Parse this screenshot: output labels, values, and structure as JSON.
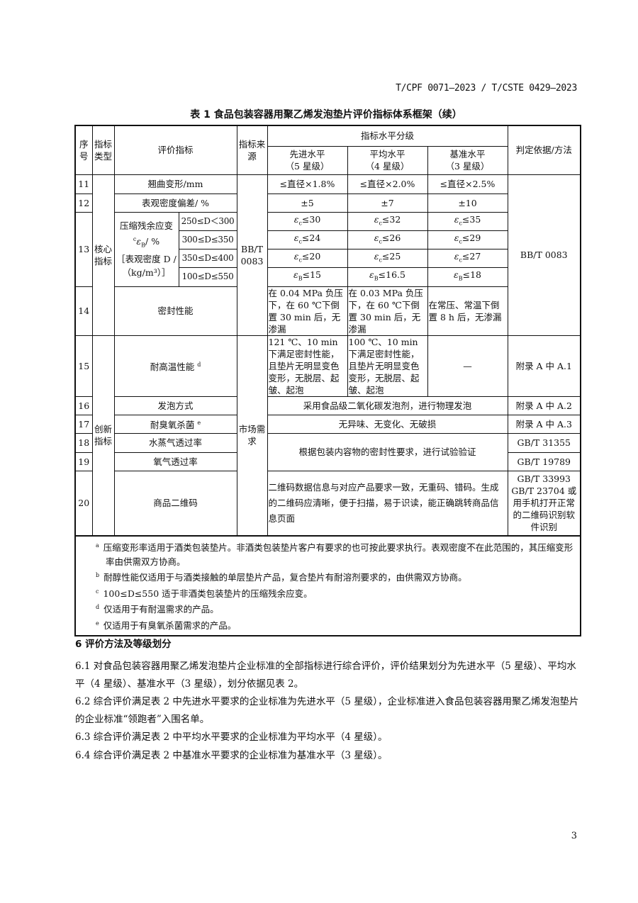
{
  "header": "T/CPF 0071—2023 / T/CSTE 0429—2023",
  "table_title": "表 1   食品包装容器用聚乙烯发泡垫片评价指标体系框架（续）",
  "columns": {
    "no": "序号",
    "type": "指标类型",
    "indicator": "评价指标",
    "source": "指标来源",
    "levels": "指标水平分级",
    "advanced": "先进水平",
    "advanced_star": "（5 星级）",
    "average": "平均水平",
    "average_star": "（4 星级）",
    "baseline": "基准水平",
    "baseline_star": "（3 星级）",
    "method": "判定依据/方法"
  },
  "groups": {
    "core": "核心指标",
    "innovation": "创新指标"
  },
  "sources": {
    "core": "BB/T 0083",
    "market": "市场需求"
  },
  "rows": {
    "r11": {
      "no": "11",
      "name": "翘曲变形/mm",
      "v": [
        "≤直径×1.8%",
        "≤直径×2.0%",
        "≤直径×2.5%"
      ]
    },
    "r12": {
      "no": "12",
      "name": "表观密度偏差/ %",
      "v": [
        "±5",
        "±7",
        "±10"
      ]
    },
    "r13": {
      "no": "13",
      "name1": "压缩残余应变",
      "sup": "c",
      "name2": "ε",
      "name2sub": "B",
      "name3": "/ %",
      "name4": "［表观密度 D /",
      "name5": "（kg/m³）］",
      "ranges": [
        "250≤D＜300",
        "300≤D≤350",
        "350≤D≤400",
        "100≤D≤550"
      ],
      "v": [
        [
          {
            "s": "c",
            "t": "≤30"
          },
          {
            "s": "c",
            "t": "≤32"
          },
          {
            "s": "c",
            "t": "≤35"
          }
        ],
        [
          {
            "s": "c",
            "t": "≤24"
          },
          {
            "s": "c",
            "t": "≤26"
          },
          {
            "s": "c",
            "t": "≤29"
          }
        ],
        [
          {
            "s": "c",
            "t": "≤20"
          },
          {
            "s": "c",
            "t": "≤25"
          },
          {
            "s": "c",
            "t": "≤27"
          }
        ],
        [
          {
            "s": "B",
            "t": "≤15"
          },
          {
            "s": "B",
            "t": "≤16.5"
          },
          {
            "s": "B",
            "t": "≤18"
          }
        ]
      ]
    },
    "r14": {
      "no": "14",
      "name": "密封性能",
      "v": [
        "在 0.04 MPa 负压下，在 60 ℃下倒置 30 min 后，无渗漏",
        "在 0.03 MPa 负压下，在 60 ℃下倒置 30 min 后，无渗漏",
        "在常压、常温下倒置 8 h 后，无渗漏"
      ]
    },
    "core_method": "BB/T 0083",
    "r15": {
      "no": "15",
      "name": "耐高温性能",
      "sup": "d",
      "v": [
        "121 ℃、10 min 下满足密封性能，且垫片无明显变色变形，无脱层、起皱、起泡",
        "100 ℃、10 min 下满足密封性能，且垫片无明显变色变形，无脱层、起皱、起泡",
        "—"
      ],
      "method": "附录 A 中 A.1"
    },
    "r16": {
      "no": "16",
      "name": "发泡方式",
      "v": "采用食品级二氧化碳发泡剂，进行物理发泡",
      "method": "附录 A 中 A.2"
    },
    "r17": {
      "no": "17",
      "name": "耐臭氧杀菌",
      "sup": "e",
      "v": "无异味、无变化、无破损",
      "method": "附录 A 中 A.3"
    },
    "r18": {
      "no": "18",
      "name": "水蒸气透过率",
      "method": "GB/T 31355"
    },
    "r19": {
      "no": "19",
      "name": "氧气透过率",
      "method": "GB/T 19789"
    },
    "r1819_v": "根据包装内容物的密封性要求，进行试验验证",
    "r20": {
      "no": "20",
      "name": "商品二维码",
      "v": "二维码数据信息与对应产品要求一致，无重码、错码。生成的二维码应清晰，便于扫描，易于识读，能正确跳转商品信息页面",
      "method": "GB/T 33993 GB/T 23704 或用手机打开正常的二维码识别软件识别"
    }
  },
  "footnotes": [
    {
      "m": "a",
      "t": "压缩变形率适用于酒类包装垫片。非酒类包装垫片客户有要求的也可按此要求执行。表观密度不在此范围的，其压缩变形率由供需双方协商。"
    },
    {
      "m": "b",
      "t": "耐醇性能仅适用于与酒类接触的单层垫片产品，复合垫片有耐溶剂要求的，由供需双方协商。"
    },
    {
      "m": "c",
      "t": "100≤D≤550 适于非酒类包装垫片的压缩残余应变。"
    },
    {
      "m": "d",
      "t": "仅适用于有耐温需求的产品。"
    },
    {
      "m": "e",
      "t": "仅适用于有臭氧杀菌需求的产品。"
    }
  ],
  "section": "6   评价方法及等级划分",
  "paragraphs": [
    "6.1   对食品包装容器用聚乙烯发泡垫片企业标准的全部指标进行综合评价，评价结果划分为先进水平（5 星级）、平均水平（4 星级）、基准水平（3 星级），划分依据见表 2。",
    "6.2   综合评价满足表 2 中先进水平要求的企业标准为先进水平（5 星级），企业标准进入食品包装容器用聚乙烯发泡垫片的企业标准“领跑者”入围名单。",
    "6.3   综合评价满足表 2 中平均水平要求的企业标准为平均水平（4 星级）。",
    "6.4   综合评价满足表 2 中基准水平要求的企业标准为基准水平（3 星级）。"
  ],
  "page_number": "3"
}
